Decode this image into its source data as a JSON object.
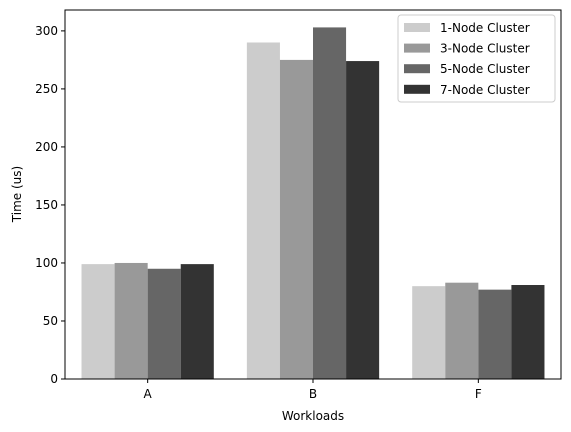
{
  "chart_data": {
    "type": "bar",
    "title": "",
    "xlabel": "Workloads",
    "ylabel": "Time (us)",
    "categories": [
      "A",
      "B",
      "F"
    ],
    "ylim": [
      0,
      318
    ],
    "yticks": [
      0,
      50,
      100,
      150,
      200,
      250,
      300
    ],
    "grid": false,
    "legend_position": "top-right",
    "series": [
      {
        "name": "1-Node Cluster",
        "color": "#cccccc",
        "values": [
          99,
          290,
          80
        ]
      },
      {
        "name": "3-Node Cluster",
        "color": "#999999",
        "values": [
          100,
          275,
          83
        ]
      },
      {
        "name": "5-Node Cluster",
        "color": "#666666",
        "values": [
          95,
          303,
          77
        ]
      },
      {
        "name": "7-Node Cluster",
        "color": "#333333",
        "values": [
          99,
          274,
          81
        ]
      }
    ]
  }
}
